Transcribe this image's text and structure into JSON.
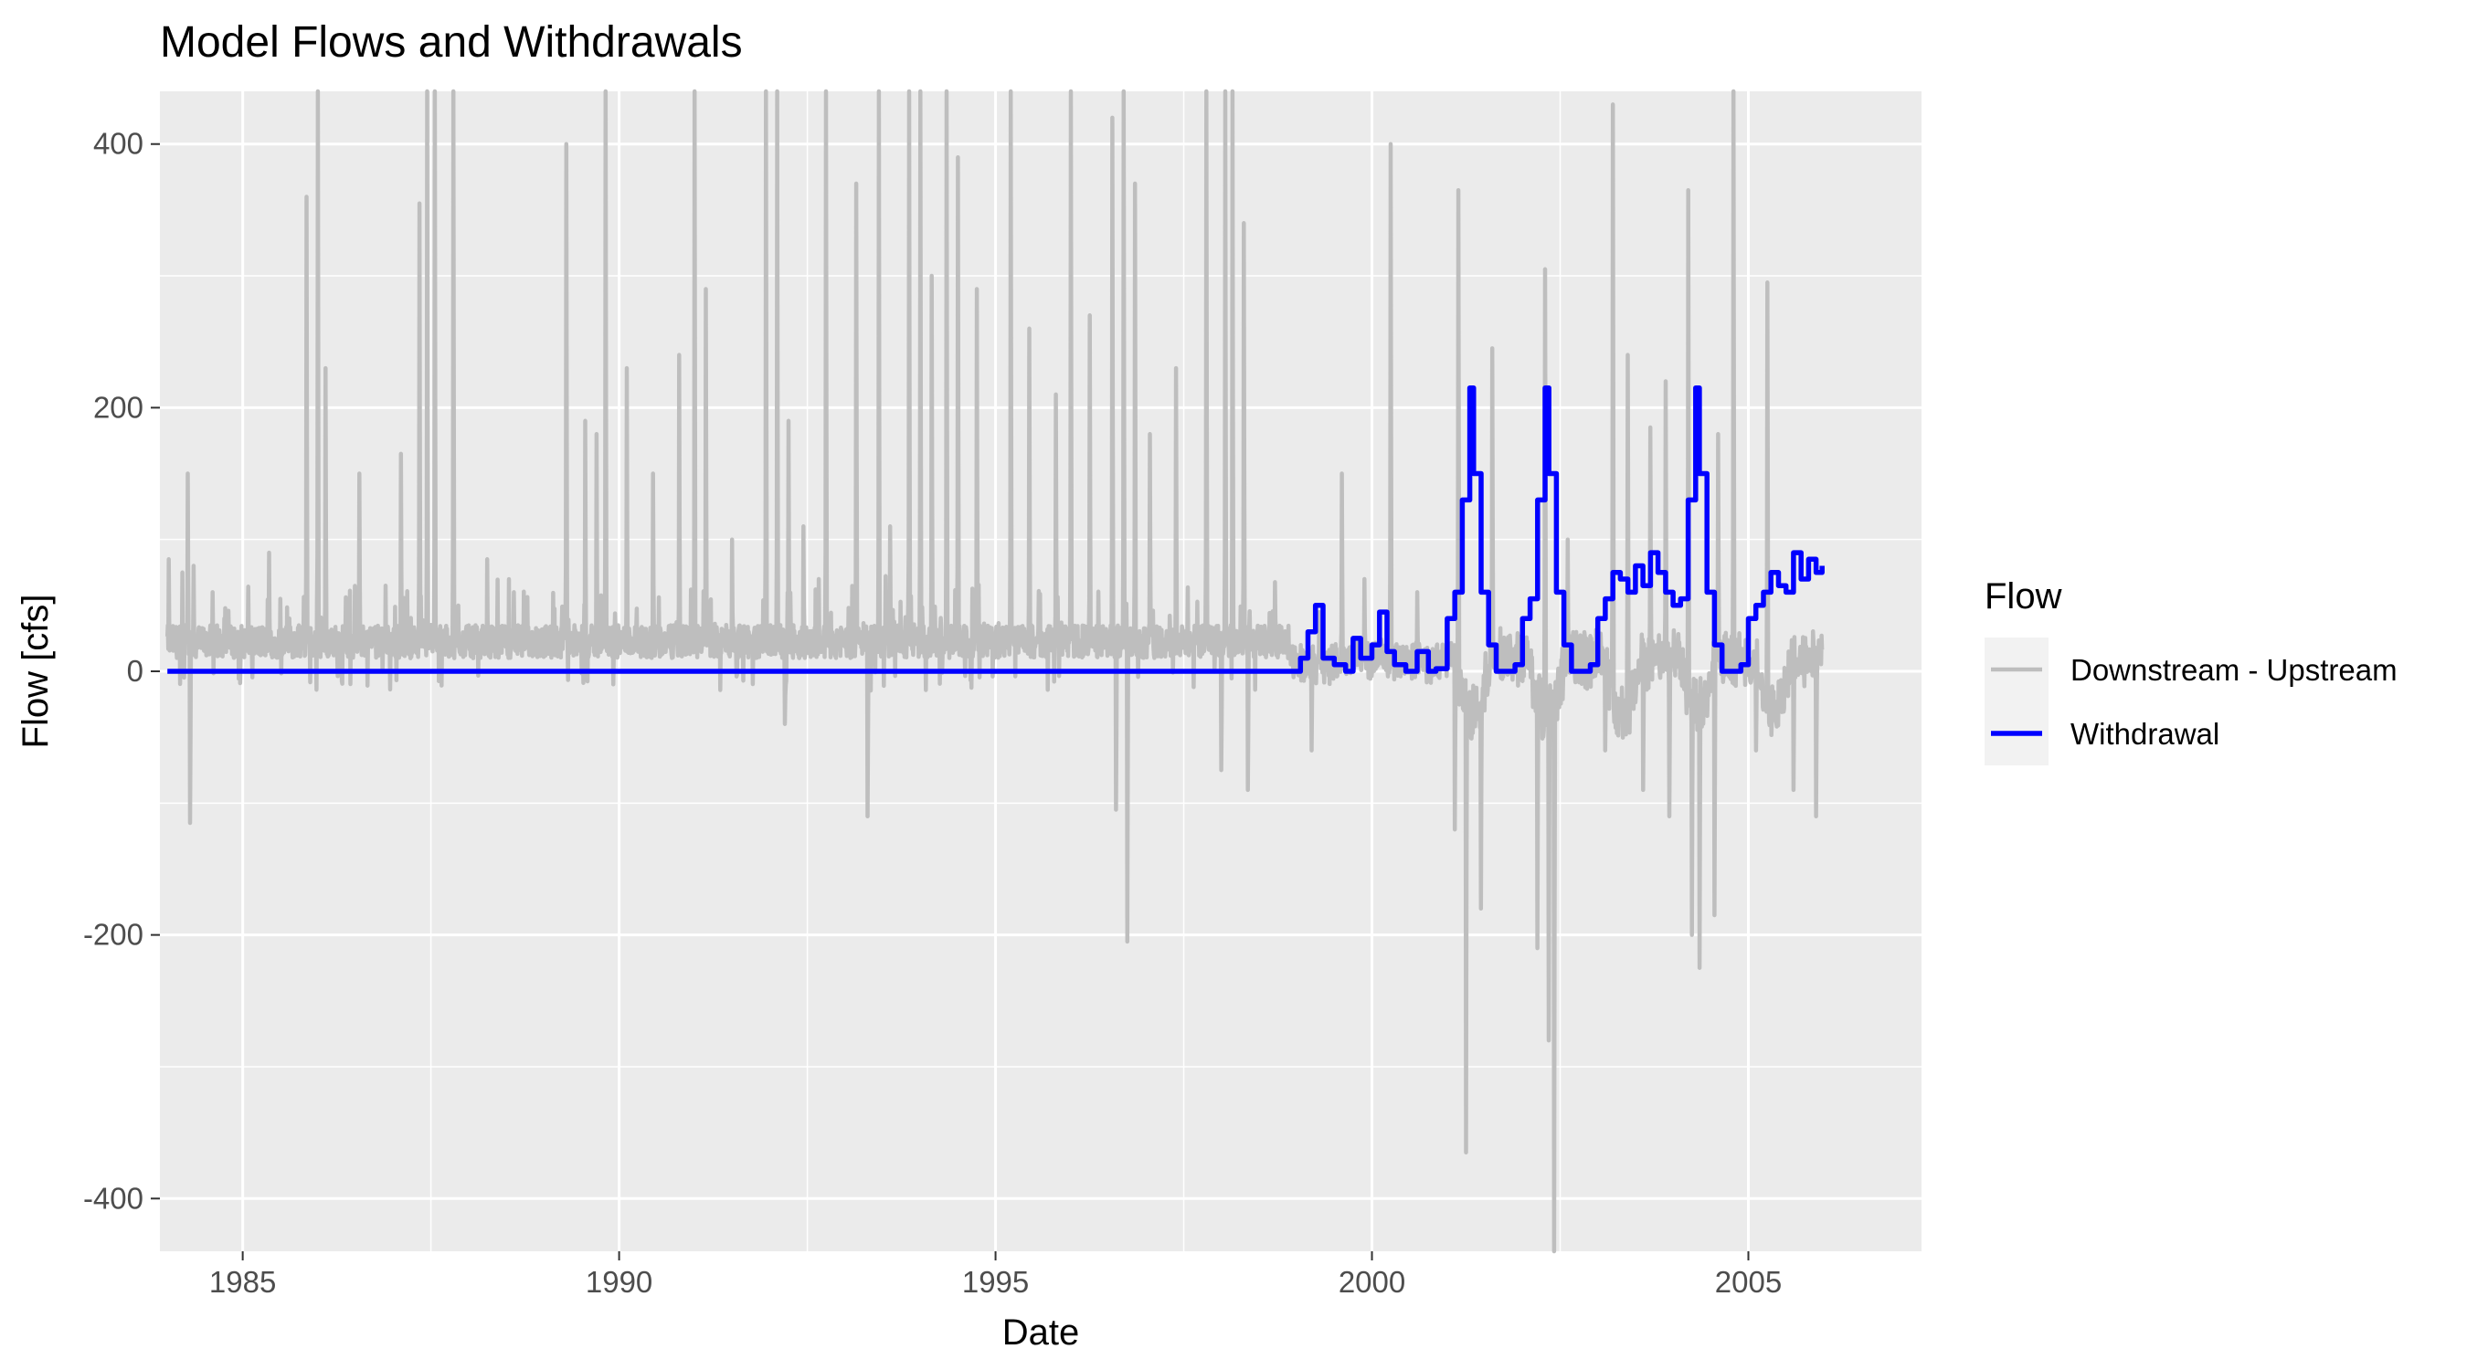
{
  "chart_data": {
    "type": "line",
    "title": "Model Flows and Withdrawals",
    "xlabel": "Date",
    "ylabel": "Flow [cfs]",
    "xlim": [
      1983.9,
      2007.3
    ],
    "ylim": [
      -440,
      440
    ],
    "x_ticks": [
      1985,
      1990,
      1995,
      2000,
      2005
    ],
    "x_tick_labels": [
      "1985",
      "1990",
      "1995",
      "2000",
      "2005"
    ],
    "y_ticks": [
      -400,
      -200,
      0,
      200,
      400
    ],
    "y_tick_labels": [
      "-400",
      "-200",
      "0",
      "200",
      "400"
    ],
    "grid": true,
    "legend": {
      "title": "Flow",
      "position": "right",
      "entries": [
        "Downstream - Upstream",
        "Withdrawal"
      ]
    },
    "series": [
      {
        "name": "Downstream - Upstream",
        "color": "#bebebe",
        "x": [
          1984.0,
          1984.1,
          1984.15,
          1984.2,
          1984.25,
          1984.3,
          1984.35,
          1984.4,
          1984.5,
          1984.6,
          1984.8,
          1985.0,
          1985.2,
          1985.35,
          1985.5,
          1985.62,
          1985.7,
          1985.8,
          1985.85,
          1985.95,
          1986.1,
          1986.3,
          1986.5,
          1986.6,
          1986.8,
          1987.0,
          1987.2,
          1987.3,
          1987.4,
          1987.5,
          1987.6,
          1987.8,
          1988.0,
          1988.3,
          1988.6,
          1988.9,
          1989.2,
          1989.4,
          1989.55,
          1989.7,
          1989.8,
          1989.9,
          1990.0,
          1990.2,
          1990.45,
          1990.6,
          1990.8,
          1991.0,
          1991.2,
          1991.5,
          1991.8,
          1992.0,
          1992.1,
          1992.2,
          1992.3,
          1992.5,
          1992.7,
          1992.9,
          1993.1,
          1993.2,
          1993.4,
          1993.6,
          1993.8,
          1994.0,
          1994.2,
          1994.4,
          1994.6,
          1994.8,
          1995.0,
          1995.3,
          1995.6,
          1995.8,
          1996.0,
          1996.2,
          1996.4,
          1996.55,
          1996.6,
          1996.7,
          1996.85,
          1997.0,
          1997.2,
          1997.5,
          1997.8,
          1998.0,
          1998.1,
          1998.2,
          1998.3,
          1998.5,
          1998.8,
          1999.0,
          1999.2,
          1999.4,
          1999.6,
          1999.8,
          2000.0,
          2000.2,
          2000.4,
          2000.6,
          2000.8,
          2001.0,
          2001.1,
          2001.2,
          2001.3,
          2001.4,
          2001.5,
          2001.6,
          2001.8,
          2002.0,
          2002.15,
          2002.3,
          2002.4,
          2002.5,
          2002.6,
          2002.8,
          2003.0,
          2003.2,
          2003.3,
          2003.5,
          2003.7,
          2003.9,
          2004.0,
          2004.2,
          2004.3,
          2004.4,
          2004.5,
          2004.6,
          2004.8,
          2005.0,
          2005.2,
          2005.4,
          2005.6,
          2005.8,
          2005.95
        ],
        "y": [
          85,
          20,
          75,
          40,
          150,
          -115,
          80,
          30,
          15,
          60,
          20,
          10,
          25,
          90,
          15,
          40,
          30,
          20,
          360,
          15,
          230,
          25,
          150,
          10,
          20,
          5,
          165,
          40,
          355,
          440,
          30,
          10,
          440,
          15,
          10,
          80,
          15,
          10,
          20,
          25,
          400,
          30,
          440,
          45,
          190,
          20,
          150,
          100,
          20,
          60,
          440,
          50,
          440,
          20,
          10,
          110,
          40,
          440,
          25,
          10,
          440,
          20,
          70,
          440,
          40,
          290,
          80,
          10,
          440,
          60,
          440,
          20,
          440,
          15,
          270,
          30,
          420,
          385,
          440,
          25,
          230,
          20,
          440,
          20,
          50,
          440,
          50,
          10,
          400,
          15,
          40,
          -20,
          5,
          -10,
          75,
          10,
          20,
          10,
          25,
          20,
          5,
          2,
          3,
          5,
          10,
          20,
          50,
          20,
          10,
          440,
          40,
          20,
          60,
          30,
          120,
          2,
          -200,
          -365,
          -100,
          160,
          -90,
          180,
          -170,
          400,
          -100,
          -30,
          -200,
          150,
          30,
          300,
          -90,
          0,
          60
        ],
        "__note": "placeholder overwritten below"
      },
      {
        "name": "Withdrawal",
        "color": "#0000ff",
        "x": [
          1984.0,
          1999.0,
          1999.05,
          1999.15,
          1999.25,
          1999.35,
          1999.5,
          1999.65,
          1999.75,
          1999.85,
          2000.0,
          2000.1,
          2000.2,
          2000.3,
          2000.45,
          2000.6,
          2000.75,
          2000.85,
          2001.0,
          2001.1,
          2001.2,
          2001.3,
          2001.35,
          2001.45,
          2001.55,
          2001.65,
          2001.75,
          2001.9,
          2002.0,
          2002.1,
          2002.2,
          2002.3,
          2002.35,
          2002.45,
          2002.55,
          2002.65,
          2002.75,
          2002.9,
          2003.0,
          2003.1,
          2003.2,
          2003.3,
          2003.4,
          2003.5,
          2003.6,
          2003.7,
          2003.8,
          2003.9,
          2004.0,
          2004.1,
          2004.2,
          2004.3,
          2004.35,
          2004.45,
          2004.55,
          2004.65,
          2004.75,
          2004.9,
          2005.0,
          2005.1,
          2005.2,
          2005.3,
          2005.4,
          2005.5,
          2005.6,
          2005.7,
          2005.8,
          2005.9,
          2005.98
        ],
        "y": [
          0,
          0,
          10,
          30,
          50,
          10,
          5,
          0,
          25,
          10,
          20,
          45,
          15,
          5,
          0,
          15,
          0,
          2,
          40,
          60,
          130,
          215,
          150,
          60,
          20,
          0,
          0,
          5,
          40,
          55,
          130,
          215,
          150,
          60,
          20,
          0,
          0,
          5,
          40,
          55,
          75,
          70,
          60,
          80,
          65,
          90,
          75,
          60,
          50,
          55,
          130,
          215,
          150,
          60,
          20,
          0,
          0,
          5,
          40,
          50,
          60,
          75,
          65,
          60,
          90,
          70,
          85,
          75,
          80
        ]
      }
    ]
  }
}
